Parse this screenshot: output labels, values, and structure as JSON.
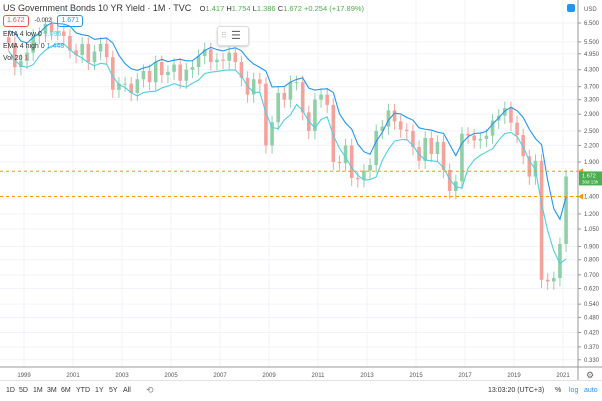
{
  "header": {
    "title": "US Government Bonds 10 YR Yield · 1M · TVC",
    "ohlc_o": "O",
    "ohlc_o_val": "1.417",
    "ohlc_h": "H",
    "ohlc_h_val": "1.754",
    "ohlc_l": "L",
    "ohlc_l_val": "1.386",
    "ohlc_c": "C",
    "ohlc_c_val": "1.672",
    "change": "+0.254 (+17.89%)",
    "bid": "1.672",
    "spread": "-0.002",
    "ask": "1.671"
  },
  "indicators": [
    {
      "label": "EMA 4 low 0",
      "value": "1.096",
      "color": "#4dd0e1"
    },
    {
      "label": "EMA 4 high 0",
      "value": "1.448",
      "color": "#2196f3"
    },
    {
      "label": "Vol 20",
      "value": "1",
      "color": "#ef5350"
    }
  ],
  "price_axis": {
    "currency": "USD",
    "ticks": [
      "6.500",
      "5.500",
      "4.950",
      "4.300",
      "3.700",
      "3.300",
      "2.900",
      "2.500",
      "2.200",
      "1.900",
      "1.400",
      "1.200",
      "1.050",
      "0.900",
      "0.800",
      "0.700",
      "0.620",
      "0.540",
      "0.480",
      "0.420",
      "0.370",
      "0.330"
    ],
    "last_price": "1.672",
    "countdown": "30d 13h"
  },
  "time_axis": {
    "ticks": [
      "1999",
      "2001",
      "2003",
      "2005",
      "2007",
      "2009",
      "2011",
      "2013",
      "2015",
      "2017",
      "2019",
      "2021"
    ]
  },
  "toolbar": {
    "ranges": [
      "1D",
      "5D",
      "1M",
      "3M",
      "6M",
      "YTD",
      "1Y",
      "5Y",
      "All"
    ],
    "clock": "13:03:20 (UTC+3)",
    "percent": "%",
    "log": "log",
    "auto": "auto"
  },
  "colors": {
    "up": "#8fd0a8",
    "down": "#f5a29b",
    "ema_high": "#2196f3",
    "ema_low": "#4dd0e1",
    "hline": "#ff9800",
    "last": "#4caf50"
  },
  "chart_data": {
    "type": "candlestick",
    "scale": "log",
    "ylim": [
      0.3,
      7.6
    ],
    "grid": true,
    "start": "1998-Q2",
    "interval": "quarter",
    "close": [
      5.45,
      4.4,
      4.65,
      5.0,
      5.8,
      5.9,
      6.45,
      6.0,
      6.03,
      5.8,
      5.1,
      4.9,
      5.4,
      4.6,
      5.05,
      5.4,
      4.8,
      3.6,
      3.8,
      3.8,
      3.5,
      3.95,
      4.25,
      3.85,
      4.6,
      4.1,
      4.22,
      4.5,
      3.9,
      4.3,
      4.4,
      4.85,
      5.15,
      4.6,
      4.7,
      4.65,
      5.0,
      4.6,
      4.0,
      3.45,
      3.95,
      3.8,
      2.2,
      2.7,
      3.5,
      3.3,
      3.85,
      3.85,
      2.95,
      2.5,
      3.3,
      3.45,
      3.15,
      1.9,
      1.88,
      2.2,
      1.65,
      1.63,
      1.76,
      1.85,
      2.5,
      2.6,
      3.0,
      2.72,
      2.53,
      2.5,
      2.17,
      1.92,
      2.35,
      2.04,
      2.27,
      1.77,
      1.47,
      1.6,
      2.44,
      2.4,
      2.3,
      2.33,
      2.4,
      2.74,
      2.86,
      3.06,
      2.69,
      2.41,
      2.0,
      1.67,
      1.92,
      0.67,
      0.66,
      0.68,
      0.92,
      1.672
    ],
    "horizontal_lines": [
      1.75,
      1.4
    ],
    "indicators": [
      "EMA 4 low",
      "EMA 4 high"
    ]
  }
}
